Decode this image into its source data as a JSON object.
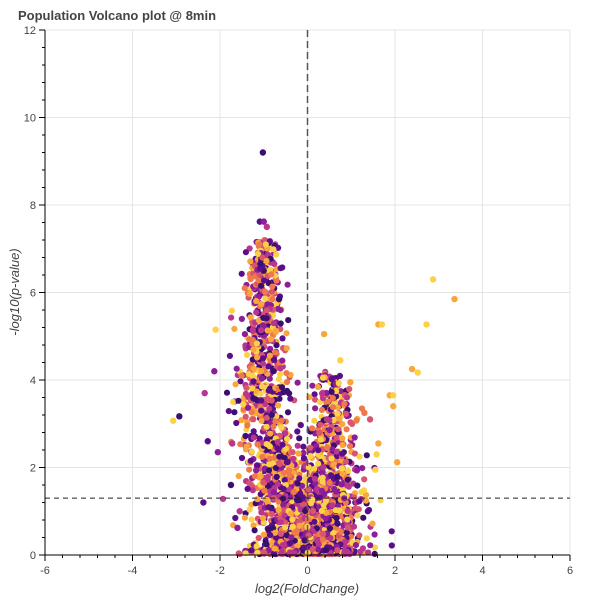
{
  "chart_data": {
    "type": "scatter",
    "title": "Population Volcano plot @ 8min",
    "xlabel": "log2(FoldChange)",
    "ylabel": "-log10(p-value)",
    "xlim": [
      -6,
      6
    ],
    "ylim": [
      0,
      12
    ],
    "x_ticks": [
      -6,
      -4,
      -2,
      0,
      2,
      4,
      6
    ],
    "y_ticks": [
      0,
      2,
      4,
      6,
      8,
      10,
      12
    ],
    "grid": true,
    "legend": "none",
    "vertical_reference_x": 0,
    "horizontal_threshold_y": 1.3,
    "colormap": [
      "#3b0f70",
      "#5c0e8a",
      "#8c1f98",
      "#b8368f",
      "#d8546f",
      "#ee7a4c",
      "#f9a73a",
      "#fbd14a"
    ],
    "highlight_points": [
      {
        "x": -1.02,
        "y": 9.2
      },
      {
        "x": 2.87,
        "y": 6.3
      },
      {
        "x": 3.36,
        "y": 5.85
      },
      {
        "x": 2.72,
        "y": 5.27
      },
      {
        "x": 1.62,
        "y": 5.27
      },
      {
        "x": 1.7,
        "y": 5.27
      },
      {
        "x": 0.38,
        "y": 5.05
      },
      {
        "x": -2.1,
        "y": 5.15
      },
      {
        "x": 2.39,
        "y": 4.25
      },
      {
        "x": 2.52,
        "y": 4.17
      },
      {
        "x": -2.13,
        "y": 4.2
      },
      {
        "x": -2.35,
        "y": 3.7
      },
      {
        "x": 1.88,
        "y": 3.65
      },
      {
        "x": 1.96,
        "y": 3.65
      },
      {
        "x": 1.96,
        "y": 3.4
      },
      {
        "x": -3.07,
        "y": 3.07
      },
      {
        "x": -2.93,
        "y": 3.17
      },
      {
        "x": -2.28,
        "y": 2.6
      },
      {
        "x": -2.05,
        "y": 2.35
      },
      {
        "x": -1.72,
        "y": 2.55
      },
      {
        "x": 1.62,
        "y": 2.55
      },
      {
        "x": 1.58,
        "y": 2.3
      },
      {
        "x": 2.05,
        "y": 2.12
      },
      {
        "x": 1.55,
        "y": 1.95
      },
      {
        "x": -1.75,
        "y": 1.6
      },
      {
        "x": -2.38,
        "y": 1.2
      },
      {
        "x": -1.6,
        "y": 0.62
      },
      {
        "x": -1.55,
        "y": 1.0
      },
      {
        "x": 1.43,
        "y": 3.1
      },
      {
        "x": 1.3,
        "y": 3.25
      },
      {
        "x": 0.98,
        "y": 3.95
      },
      {
        "x": 0.75,
        "y": 4.45
      },
      {
        "x": -0.65,
        "y": 5.85
      },
      {
        "x": -1.09,
        "y": 7.62
      },
      {
        "x": -1.0,
        "y": 7.62
      },
      {
        "x": -0.93,
        "y": 7.5
      }
    ],
    "cloud": {
      "point_count": 2600,
      "seed": 7,
      "left_arm": {
        "x_center": -1.0,
        "x_spread": 0.5,
        "y_max": 7.2
      },
      "right_arm": {
        "x_center": 0.55,
        "x_spread": 0.45,
        "y_max": 4.2
      }
    }
  }
}
